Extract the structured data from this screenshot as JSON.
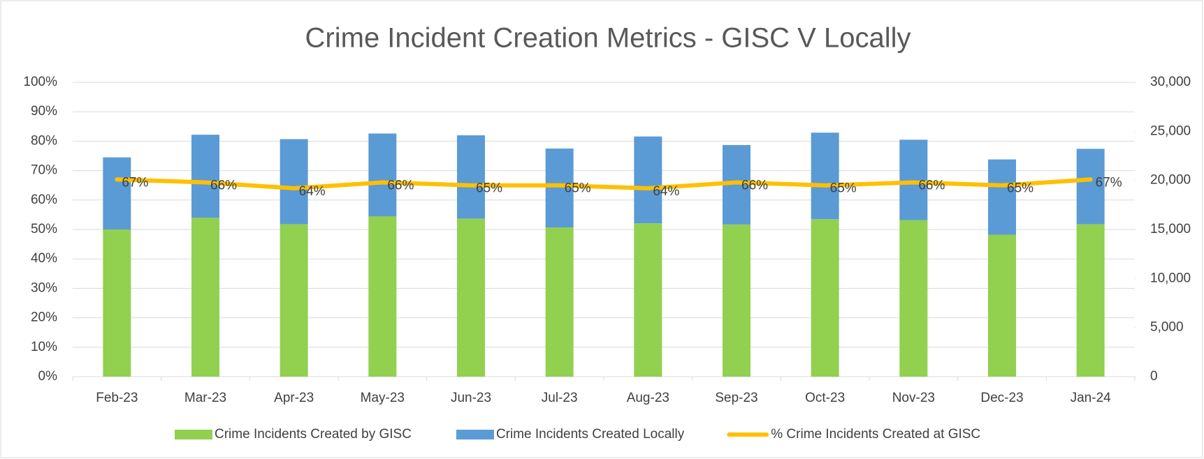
{
  "chart_data": {
    "type": "bar_line",
    "title": "Crime Incident Creation Metrics - GISC V Locally",
    "categories": [
      "Feb-23",
      "Mar-23",
      "Apr-23",
      "May-23",
      "Jun-23",
      "Jul-23",
      "Aug-23",
      "Sep-23",
      "Oct-23",
      "Nov-23",
      "Dec-23",
      "Jan-24"
    ],
    "series": [
      {
        "name": "Crime Incidents Created by GISC",
        "color": "#92d050",
        "type": "bar",
        "axis": "y2",
        "values": [
          15000,
          16200,
          15540,
          16350,
          16110,
          15210,
          15630,
          15510,
          16050,
          15960,
          14460,
          15540
        ]
      },
      {
        "name": "Crime Incidents Created Locally",
        "color": "#5b9bd5",
        "type": "bar",
        "axis": "y2",
        "values": [
          7350,
          8460,
          8670,
          8430,
          8490,
          8040,
          8850,
          8100,
          8820,
          8190,
          7680,
          7680
        ]
      },
      {
        "name": "% Crime Incidents Created at GISC",
        "color": "#ffc000",
        "type": "line",
        "axis": "y",
        "values": [
          67,
          66,
          64,
          66,
          65,
          65,
          64,
          66,
          65,
          66,
          65,
          67
        ],
        "value_labels": [
          "67%",
          "66%",
          "64%",
          "66%",
          "65%",
          "65%",
          "64%",
          "66%",
          "65%",
          "66%",
          "65%",
          "67%"
        ]
      }
    ],
    "stacked": true,
    "ylim": [
      0,
      100
    ],
    "yticks": [
      {
        "value": 0,
        "label": "0%"
      },
      {
        "value": 10,
        "label": "10%"
      },
      {
        "value": 20,
        "label": "20%"
      },
      {
        "value": 30,
        "label": "30%"
      },
      {
        "value": 40,
        "label": "40%"
      },
      {
        "value": 50,
        "label": "50%"
      },
      {
        "value": 60,
        "label": "60%"
      },
      {
        "value": 70,
        "label": "70%"
      },
      {
        "value": 80,
        "label": "80%"
      },
      {
        "value": 90,
        "label": "90%"
      },
      {
        "value": 100,
        "label": "100%"
      }
    ],
    "y2lim": [
      0,
      30000
    ],
    "y2ticks": [
      0,
      {
        "value": 5000,
        "label": "5,000"
      },
      {
        "value": 10000,
        "label": "10,000"
      },
      {
        "value": 15000,
        "label": "15,000"
      },
      {
        "value": 20000,
        "label": "20,000"
      },
      {
        "value": 25000,
        "label": "25,000"
      },
      {
        "value": 30000,
        "label": "30,000"
      }
    ],
    "grid": true,
    "legend": "bottom"
  }
}
